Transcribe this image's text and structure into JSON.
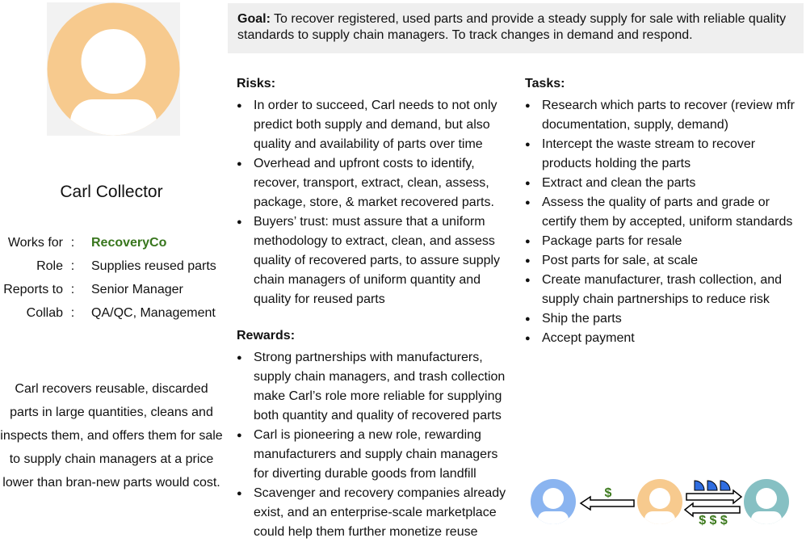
{
  "persona": {
    "name": "Carl Collector",
    "avatar_color": "#f7ca8e",
    "details": [
      {
        "key": "Works for",
        "value": "RecoveryCo",
        "accent": true
      },
      {
        "key": "Role",
        "value": "Supplies reused parts"
      },
      {
        "key": "Reports to",
        "value": "Senior Manager"
      },
      {
        "key": "Collab",
        "value": "QA/QC, Management"
      }
    ],
    "separator": ":",
    "bio": "Carl recovers reusable, discarded parts in large quantities, cleans and inspects them, and offers them for sale to supply chain managers at a price lower than bran-new parts would cost."
  },
  "goal": {
    "label": "Goal:",
    "text": "To recover registered, used parts and provide a steady supply for sale with reliable quality standards to supply chain managers. To track changes in demand and respond."
  },
  "risks": {
    "heading": "Risks:",
    "items": [
      "In order to succeed, Carl needs to not only predict both supply and demand, but also quality and availability of parts over time",
      "Overhead and upfront costs to identify, recover, transport, extract, clean, assess, package, store, &  market recovered parts.",
      "Buyers’ trust: must assure that a uniform methodology to extract, clean, and assess quality of recovered parts, to assure supply chain managers of uniform quantity and quality for reused parts"
    ]
  },
  "rewards": {
    "heading": "Rewards:",
    "items": [
      "Strong partnerships with manufacturers, supply chain managers, and trash collection make Carl’s role more reliable for supplying both quantity and quality of recovered parts",
      "Carl is pioneering a new role, rewarding manufacturers and supply chain managers for diverting durable goods from landfill",
      "Scavenger and recovery companies already exist, and an enterprise-scale marketplace could help them further monetize reuse"
    ]
  },
  "tasks": {
    "heading": "Tasks:",
    "items": [
      "Research which parts to recover (review mfr documentation, supply, demand)",
      "Intercept the waste stream to recover products holding the parts",
      "Extract and clean the parts",
      "Assess the quality of parts and grade or certify them by accepted, uniform standards",
      "Package parts for resale",
      "Post parts for sale, at scale",
      "Create manufacturer, trash collection, and supply chain partnerships to reduce risk",
      "Ship the parts",
      "Accept payment"
    ]
  },
  "flow": {
    "left_dollar": "$",
    "right_dollars": "$ $ $",
    "colors": {
      "left_avatar": "#8ab4f0",
      "center_avatar": "#f7ca8e",
      "right_avatar": "#86c0c3",
      "money": "#3d7a1e",
      "parts": "#2f6de0",
      "accent_text": "#38761d"
    }
  }
}
